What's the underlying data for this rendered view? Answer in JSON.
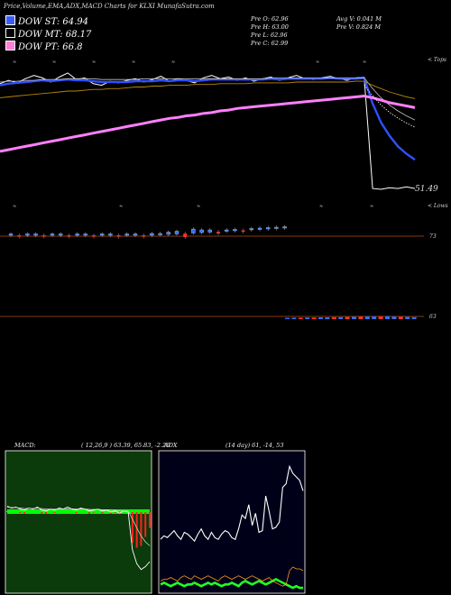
{
  "header": {
    "title": "Price,Volume,EMA,ADX,MACD Charts for KLXI MunafaSutra.com"
  },
  "legend": [
    {
      "label": "DOW ST: 64.94",
      "color": "#3d5cff"
    },
    {
      "label": "DOW MT: 68.17",
      "color": "#000000"
    },
    {
      "label": "DOW PT: 66.8",
      "color": "#ff7fd8"
    }
  ],
  "stats": {
    "prev_open": "Pre O: 62.96",
    "prev_high": "Pre H: 63.00",
    "prev_low": "Pre L: 62.96",
    "prev_close": "Pre C: 62.99",
    "avg_vol": "Avg V: 0.041 M",
    "prev_vol": "Pre V: 0.824 M"
  },
  "price_panel": {
    "top_label": "< Tops",
    "bottom_label": "< Lows",
    "last_price_label": "51.49",
    "axis_labels": [
      "73",
      "63"
    ]
  },
  "macd_panel": {
    "title_left": "MACD:",
    "title_right": "( 12,26,9 ) 63.39, 65.83, -2.26"
  },
  "adx_panel": {
    "title_left": "ADX",
    "title_right": "(14 day) 61, -14, 53"
  },
  "colors": {
    "ema_short": "#3050ff",
    "ema_long": "#ff80ff",
    "price_line": "#ffffff",
    "ema_mid": "#b8860b",
    "macd_bg": "#0b3a0b",
    "adx_bg": "#000018",
    "volume_up": "#3070ff",
    "volume_down": "#ff3030",
    "divider": "#b05010"
  },
  "chart_data": [
    {
      "type": "line",
      "name": "price-ema",
      "x_count": 50,
      "series": [
        {
          "key": "price",
          "values": [
            64.2,
            64.6,
            64.3,
            64.8,
            65.2,
            64.9,
            64.4,
            65.0,
            65.5,
            64.7,
            64.9,
            64.2,
            64.0,
            64.5,
            64.3,
            64.6,
            64.8,
            64.4,
            64.7,
            65.1,
            64.5,
            64.8,
            64.6,
            64.3,
            64.9,
            65.2,
            64.8,
            65.0,
            64.6,
            64.9,
            64.5,
            64.8,
            65.0,
            64.6,
            64.9,
            65.2,
            64.8,
            64.7,
            64.9,
            65.1,
            64.8,
            64.6,
            64.9,
            65.0,
            51.5,
            51.4,
            51.6,
            51.5,
            51.7,
            51.5
          ]
        },
        {
          "key": "ema_short",
          "values": [
            64.0,
            64.2,
            64.3,
            64.4,
            64.5,
            64.6,
            64.5,
            64.6,
            64.7,
            64.6,
            64.6,
            64.5,
            64.4,
            64.4,
            64.4,
            64.4,
            64.5,
            64.5,
            64.5,
            64.6,
            64.5,
            64.6,
            64.6,
            64.5,
            64.6,
            64.7,
            64.7,
            64.7,
            64.7,
            64.7,
            64.7,
            64.7,
            64.8,
            64.7,
            64.8,
            64.8,
            64.8,
            64.8,
            64.8,
            64.9,
            64.8,
            64.8,
            64.8,
            64.9,
            61.8,
            59.5,
            57.9,
            56.6,
            55.7,
            55.0
          ]
        },
        {
          "key": "ema_mid",
          "values": [
            64.4,
            64.5,
            64.5,
            64.6,
            64.6,
            64.7,
            64.7,
            64.7,
            64.8,
            64.8,
            64.8,
            64.8,
            64.7,
            64.7,
            64.7,
            64.7,
            64.7,
            64.8,
            64.8,
            64.8,
            64.8,
            64.8,
            64.8,
            64.8,
            64.8,
            64.8,
            64.8,
            64.8,
            64.8,
            64.8,
            64.8,
            64.8,
            64.9,
            64.9,
            64.9,
            64.9,
            64.9,
            64.9,
            64.9,
            64.9,
            64.9,
            64.9,
            64.9,
            64.9,
            63.6,
            62.5,
            61.6,
            60.9,
            60.3,
            59.8
          ]
        },
        {
          "key": "ema_long",
          "values": [
            56.0,
            56.2,
            56.4,
            56.6,
            56.8,
            57.0,
            57.2,
            57.4,
            57.6,
            57.8,
            58.0,
            58.2,
            58.4,
            58.6,
            58.8,
            59.0,
            59.2,
            59.4,
            59.6,
            59.8,
            60.0,
            60.1,
            60.3,
            60.4,
            60.6,
            60.7,
            60.9,
            61.0,
            61.2,
            61.3,
            61.4,
            61.5,
            61.6,
            61.7,
            61.8,
            61.9,
            62.0,
            62.1,
            62.2,
            62.3,
            62.4,
            62.5,
            62.6,
            62.7,
            62.5,
            62.2,
            61.9,
            61.7,
            61.5,
            61.3
          ]
        },
        {
          "key": "ema_slow",
          "values": [
            62.5,
            62.6,
            62.7,
            62.8,
            62.9,
            63.0,
            63.1,
            63.2,
            63.3,
            63.3,
            63.4,
            63.5,
            63.5,
            63.6,
            63.6,
            63.7,
            63.8,
            63.8,
            63.9,
            63.9,
            64.0,
            64.0,
            64.0,
            64.1,
            64.1,
            64.1,
            64.2,
            64.2,
            64.2,
            64.2,
            64.3,
            64.3,
            64.3,
            64.3,
            64.3,
            64.4,
            64.4,
            64.4,
            64.4,
            64.4,
            64.4,
            64.4,
            64.5,
            64.5,
            64.0,
            63.6,
            63.2,
            62.9,
            62.6,
            62.4
          ]
        }
      ],
      "ylim": [
        49,
        68
      ]
    },
    {
      "type": "bar",
      "name": "candles",
      "values": [
        0.1,
        -0.2,
        0.1,
        0.2,
        -0.1,
        0.2,
        0.3,
        -0.2,
        0.1,
        0.1,
        -0.1,
        0.2,
        0.3,
        -0.2,
        0.1,
        0.1,
        -0.3,
        0.4,
        0.2,
        0.5,
        0.6,
        -0.8,
        0.9,
        0.6,
        0.5,
        -0.4,
        0.3,
        0.2,
        -0.3,
        0.1,
        0.2,
        0.1,
        0.1,
        0.2
      ]
    },
    {
      "type": "bar",
      "name": "volume",
      "values": [
        0.2,
        0.3,
        0.3,
        0.4,
        0.4,
        0.5,
        0.5,
        0.6,
        0.6,
        0.7,
        0.8,
        0.9,
        1.0,
        1.0,
        1.1,
        1.2,
        0.9,
        0.8,
        0.7,
        0.6
      ],
      "signs": [
        1,
        1,
        -1,
        1,
        -1,
        1,
        1,
        -1,
        1,
        -1,
        1,
        -1,
        1,
        1,
        -1,
        1,
        1,
        -1,
        1,
        1
      ]
    },
    {
      "type": "line",
      "name": "macd",
      "series": [
        {
          "key": "macd",
          "values": [
            0.6,
            0.4,
            0.5,
            0.3,
            0.2,
            0.4,
            0.3,
            0.5,
            0.2,
            0.1,
            0.3,
            0.2,
            0.4,
            0.3,
            0.5,
            0.3,
            0.2,
            0.4,
            0.3,
            0.1,
            0.2,
            0.3,
            0.1,
            0.2,
            0.0,
            0.1,
            -0.1,
            0.1,
            0.0,
            -3.8,
            -5.2,
            -5.8,
            -5.5,
            -5.0
          ]
        },
        {
          "key": "signal",
          "values": [
            0.5,
            0.45,
            0.45,
            0.4,
            0.35,
            0.38,
            0.35,
            0.4,
            0.35,
            0.3,
            0.3,
            0.28,
            0.3,
            0.3,
            0.35,
            0.33,
            0.3,
            0.32,
            0.31,
            0.27,
            0.26,
            0.27,
            0.24,
            0.23,
            0.19,
            0.17,
            0.12,
            0.11,
            0.09,
            -0.7,
            -1.6,
            -2.4,
            -3.0,
            -3.4
          ]
        }
      ],
      "ylim": [
        -8,
        6
      ]
    },
    {
      "type": "line",
      "name": "adx",
      "series": [
        {
          "key": "adx_line",
          "values": [
            30,
            32,
            31,
            33,
            35,
            32,
            30,
            34,
            33,
            31,
            29,
            33,
            36,
            32,
            30,
            34,
            31,
            30,
            33,
            35,
            34,
            31,
            30,
            36,
            44,
            42,
            50,
            38,
            45,
            34,
            35,
            55,
            46,
            36,
            37,
            40,
            60,
            62,
            72,
            68,
            66,
            64,
            58
          ]
        },
        {
          "key": "plus_di",
          "values": [
            6,
            7,
            7,
            8,
            7,
            6,
            8,
            9,
            8,
            7,
            9,
            8,
            7,
            8,
            9,
            8,
            7,
            6,
            8,
            9,
            8,
            7,
            8,
            9,
            8,
            7,
            8,
            9,
            8,
            7,
            6,
            7,
            8,
            6,
            5,
            4,
            3,
            4,
            12,
            14,
            13,
            13,
            12
          ]
        },
        {
          "key": "minus_di",
          "values": [
            4,
            5,
            4,
            3,
            4,
            5,
            4,
            3,
            4,
            4,
            5,
            4,
            3,
            4,
            5,
            4,
            5,
            4,
            3,
            4,
            4,
            5,
            4,
            3,
            5,
            6,
            5,
            4,
            5,
            6,
            5,
            4,
            5,
            6,
            7,
            6,
            5,
            4,
            3,
            2,
            3,
            2,
            2
          ]
        }
      ],
      "ylim": [
        0,
        80
      ]
    }
  ]
}
